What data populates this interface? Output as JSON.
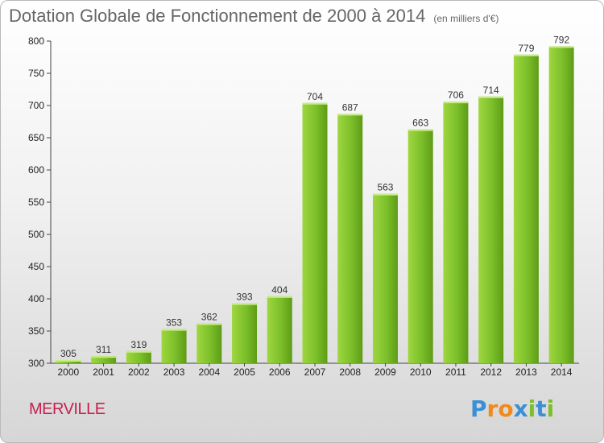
{
  "chart_data": {
    "type": "bar",
    "title": "Dotation Globale de Fonctionnement de 2000 à 2014",
    "subtitle": "(en milliers d'€)",
    "categories": [
      "2000",
      "2001",
      "2002",
      "2003",
      "2004",
      "2005",
      "2006",
      "2007",
      "2008",
      "2009",
      "2010",
      "2011",
      "2012",
      "2013",
      "2014"
    ],
    "values": [
      305,
      311,
      319,
      353,
      362,
      393,
      404,
      704,
      687,
      563,
      663,
      706,
      714,
      779,
      792
    ],
    "y_ticks": [
      300,
      350,
      400,
      450,
      500,
      550,
      600,
      650,
      700,
      750,
      800
    ],
    "ylim": [
      300,
      800
    ],
    "xlabel": "",
    "ylabel": "",
    "grid": false,
    "bar_color": "#7bbf2a",
    "bar_color_light": "#9fd63f",
    "bar_color_dark": "#5e9c16"
  },
  "footer": {
    "place": "MERVILLE",
    "place_color": "#c6204f"
  },
  "brand": {
    "letters": [
      "P",
      "r",
      "o",
      "x",
      "i",
      "t",
      "i"
    ],
    "colors": [
      "#3a8fd6",
      "#f08a1c",
      "#f08a1c",
      "#3a8fd6",
      "#7bbf2a",
      "#3a8fd6",
      "#7bbf2a"
    ]
  }
}
